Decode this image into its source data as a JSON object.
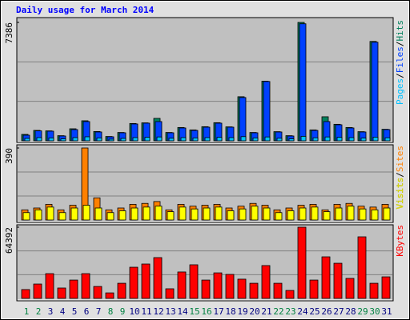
{
  "title": "Daily usage for March 2014",
  "legend_separator": "/",
  "chart_data": [
    {
      "type": "bar",
      "ylim": [
        0,
        7386
      ],
      "yticks": [
        7386
      ],
      "series": [
        {
          "name": "Hits",
          "color": "#00805c",
          "values": [
            400,
            650,
            620,
            320,
            750,
            1250,
            580,
            270,
            520,
            1080,
            1120,
            1400,
            520,
            830,
            680,
            880,
            1130,
            870,
            2750,
            520,
            3720,
            570,
            320,
            7386,
            680,
            1500,
            1030,
            830,
            570,
            6200,
            720
          ]
        },
        {
          "name": "Files",
          "color": "#0040ff",
          "values": [
            350,
            620,
            600,
            300,
            700,
            1200,
            550,
            250,
            500,
            1050,
            1100,
            1200,
            500,
            800,
            650,
            850,
            1100,
            850,
            2700,
            500,
            3700,
            550,
            300,
            7300,
            650,
            1200,
            1000,
            800,
            550,
            6150,
            700
          ]
        },
        {
          "name": "Pages",
          "color": "#00c0ff",
          "values": [
            150,
            200,
            180,
            120,
            200,
            250,
            180,
            100,
            150,
            200,
            220,
            240,
            160,
            200,
            180,
            200,
            220,
            200,
            260,
            180,
            240,
            160,
            120,
            280,
            190,
            240,
            220,
            200,
            170,
            230,
            190
          ]
        }
      ]
    },
    {
      "type": "bar",
      "ylim": [
        0,
        390
      ],
      "yticks": [
        390
      ],
      "series": [
        {
          "name": "Sites",
          "color": "#ff8000",
          "values": [
            55,
            65,
            85,
            55,
            80,
            390,
            120,
            55,
            65,
            85,
            90,
            100,
            55,
            85,
            75,
            80,
            85,
            65,
            75,
            90,
            80,
            55,
            65,
            80,
            85,
            55,
            85,
            90,
            75,
            70,
            85
          ]
        },
        {
          "name": "Visits",
          "color": "#ffff00",
          "values": [
            40,
            55,
            70,
            40,
            65,
            80,
            65,
            40,
            50,
            65,
            70,
            75,
            45,
            70,
            60,
            65,
            70,
            50,
            60,
            75,
            65,
            40,
            50,
            65,
            70,
            45,
            65,
            75,
            60,
            55,
            65
          ]
        }
      ]
    },
    {
      "type": "bar",
      "ylim": [
        0,
        64392
      ],
      "yticks": [
        64392
      ],
      "categories": [
        "1",
        "2",
        "3",
        "4",
        "5",
        "6",
        "7",
        "8",
        "9",
        "10",
        "11",
        "12",
        "13",
        "14",
        "15",
        "16",
        "17",
        "18",
        "19",
        "20",
        "21",
        "22",
        "23",
        "24",
        "25",
        "26",
        "27",
        "28",
        "29",
        "30",
        "31"
      ],
      "category_colors": [
        "#008040",
        "#008040",
        "#000080",
        "#000080",
        "#000080",
        "#000080",
        "#000080",
        "#008040",
        "#008040",
        "#000080",
        "#000080",
        "#000080",
        "#000080",
        "#000080",
        "#008040",
        "#008040",
        "#000080",
        "#000080",
        "#000080",
        "#000080",
        "#000080",
        "#008040",
        "#008040",
        "#000080",
        "#000080",
        "#000080",
        "#000080",
        "#000080",
        "#008040",
        "#008040",
        "#000080"
      ],
      "series": [
        {
          "name": "KBytes",
          "color": "#ff0000",
          "values": [
            8000,
            13000,
            22400,
            9400,
            16600,
            22400,
            10800,
            5000,
            13700,
            28200,
            31100,
            36900,
            8700,
            23900,
            30400,
            16600,
            23100,
            21700,
            17400,
            13700,
            29700,
            13700,
            7200,
            64392,
            16600,
            37600,
            31800,
            18100,
            55700,
            13700,
            19500
          ]
        }
      ]
    }
  ]
}
